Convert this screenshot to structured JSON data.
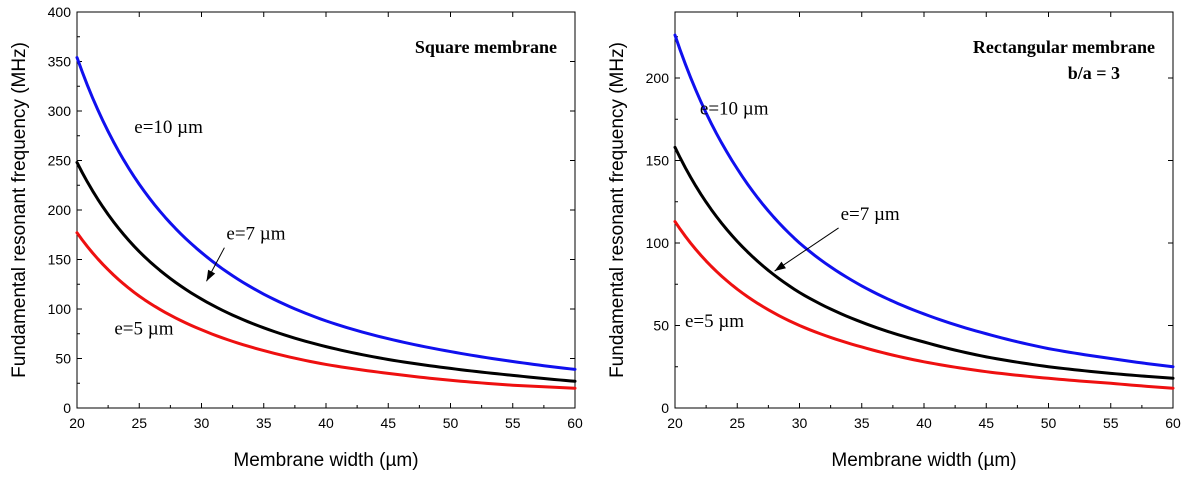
{
  "chart_data": [
    {
      "type": "line",
      "title": "Square membrane",
      "xlabel": "Membrane width (µm)",
      "ylabel": "Fundamental resonant frequency (MHz)",
      "xlim": [
        20,
        60
      ],
      "ylim": [
        0,
        400
      ],
      "xticks": [
        20,
        25,
        30,
        35,
        40,
        45,
        50,
        55,
        60
      ],
      "yticks": [
        0,
        50,
        100,
        150,
        200,
        250,
        300,
        350,
        400
      ],
      "grid": false,
      "x": [
        20,
        25,
        30,
        35,
        40,
        45,
        50,
        55,
        60
      ],
      "series": [
        {
          "name": "e=10 µm",
          "color": "#1010ee",
          "values": [
            354,
            226,
            157,
            115,
            88,
            70,
            57,
            47,
            39
          ]
        },
        {
          "name": "e=7 µm",
          "color": "#000000",
          "values": [
            248,
            158,
            110,
            81,
            62,
            49,
            40,
            33,
            27
          ]
        },
        {
          "name": "e=5 µm",
          "color": "#ee1010",
          "values": [
            177,
            113,
            79,
            58,
            44,
            35,
            28,
            23,
            20
          ]
        }
      ],
      "annotations": [
        {
          "text": "e=10 µm",
          "x": 24.6,
          "y": 278
        },
        {
          "text": "e=7 µm",
          "x": 32.0,
          "y": 170,
          "arrow_to": [
            30.4,
            128
          ]
        },
        {
          "text": "e=5 µm",
          "x": 23.0,
          "y": 74
        }
      ]
    },
    {
      "type": "line",
      "title": "Rectangular membrane",
      "subtitle": "b/a = 3",
      "xlabel": "Membrane width (µm)",
      "ylabel": "Fundamental resonant frequency (MHz)",
      "xlim": [
        20,
        60
      ],
      "ylim": [
        0,
        240
      ],
      "xticks": [
        20,
        25,
        30,
        35,
        40,
        45,
        50,
        55,
        60
      ],
      "yticks": [
        0,
        50,
        100,
        150,
        200
      ],
      "grid": false,
      "x": [
        20,
        25,
        30,
        35,
        40,
        45,
        50,
        55,
        60
      ],
      "series": [
        {
          "name": "e=10 µm",
          "color": "#1010ee",
          "values": [
            226,
            145,
            100,
            74,
            57,
            45,
            36,
            30,
            25
          ]
        },
        {
          "name": "e=7 µm",
          "color": "#000000",
          "values": [
            158,
            101,
            70,
            52,
            40,
            31,
            25,
            21,
            18
          ]
        },
        {
          "name": "e=5 µm",
          "color": "#ee1010",
          "values": [
            113,
            72,
            50,
            37,
            28,
            22,
            18,
            15,
            12
          ]
        }
      ],
      "annotations": [
        {
          "text": "e=10 µm",
          "x": 22.0,
          "y": 178
        },
        {
          "text": "e=7 µm",
          "x": 33.3,
          "y": 114,
          "arrow_to": [
            28.0,
            83
          ]
        },
        {
          "text": "e=5 µm",
          "x": 20.8,
          "y": 49
        }
      ]
    }
  ]
}
